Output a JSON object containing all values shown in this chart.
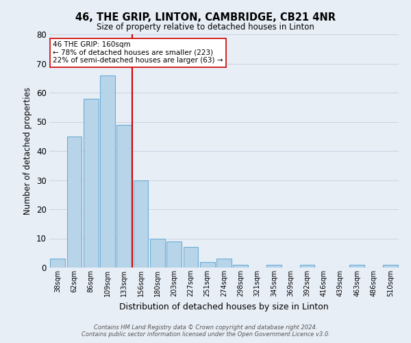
{
  "title": "46, THE GRIP, LINTON, CAMBRIDGE, CB21 4NR",
  "subtitle": "Size of property relative to detached houses in Linton",
  "xlabel": "Distribution of detached houses by size in Linton",
  "ylabel": "Number of detached properties",
  "bar_labels": [
    "38sqm",
    "62sqm",
    "86sqm",
    "109sqm",
    "133sqm",
    "156sqm",
    "180sqm",
    "203sqm",
    "227sqm",
    "251sqm",
    "274sqm",
    "298sqm",
    "321sqm",
    "345sqm",
    "369sqm",
    "392sqm",
    "416sqm",
    "439sqm",
    "463sqm",
    "486sqm",
    "510sqm"
  ],
  "bar_values": [
    3,
    45,
    58,
    66,
    49,
    30,
    10,
    9,
    7,
    2,
    3,
    1,
    0,
    1,
    0,
    1,
    0,
    0,
    1,
    0,
    1
  ],
  "bar_color": "#b8d4e8",
  "bar_edge_color": "#6aaed6",
  "vline_color": "#cc0000",
  "ylim": [
    0,
    80
  ],
  "yticks": [
    0,
    10,
    20,
    30,
    40,
    50,
    60,
    70,
    80
  ],
  "annotation_title": "46 THE GRIP: 160sqm",
  "annotation_line1": "← 78% of detached houses are smaller (223)",
  "annotation_line2": "22% of semi-detached houses are larger (63) →",
  "annotation_box_color": "#ffffff",
  "annotation_box_edge": "#cc0000",
  "footer1": "Contains HM Land Registry data © Crown copyright and database right 2024.",
  "footer2": "Contains public sector information licensed under the Open Government Licence v3.0.",
  "background_color": "#e8eef6",
  "plot_bg_color": "#e8eef6",
  "grid_color": "#c8d4e0"
}
